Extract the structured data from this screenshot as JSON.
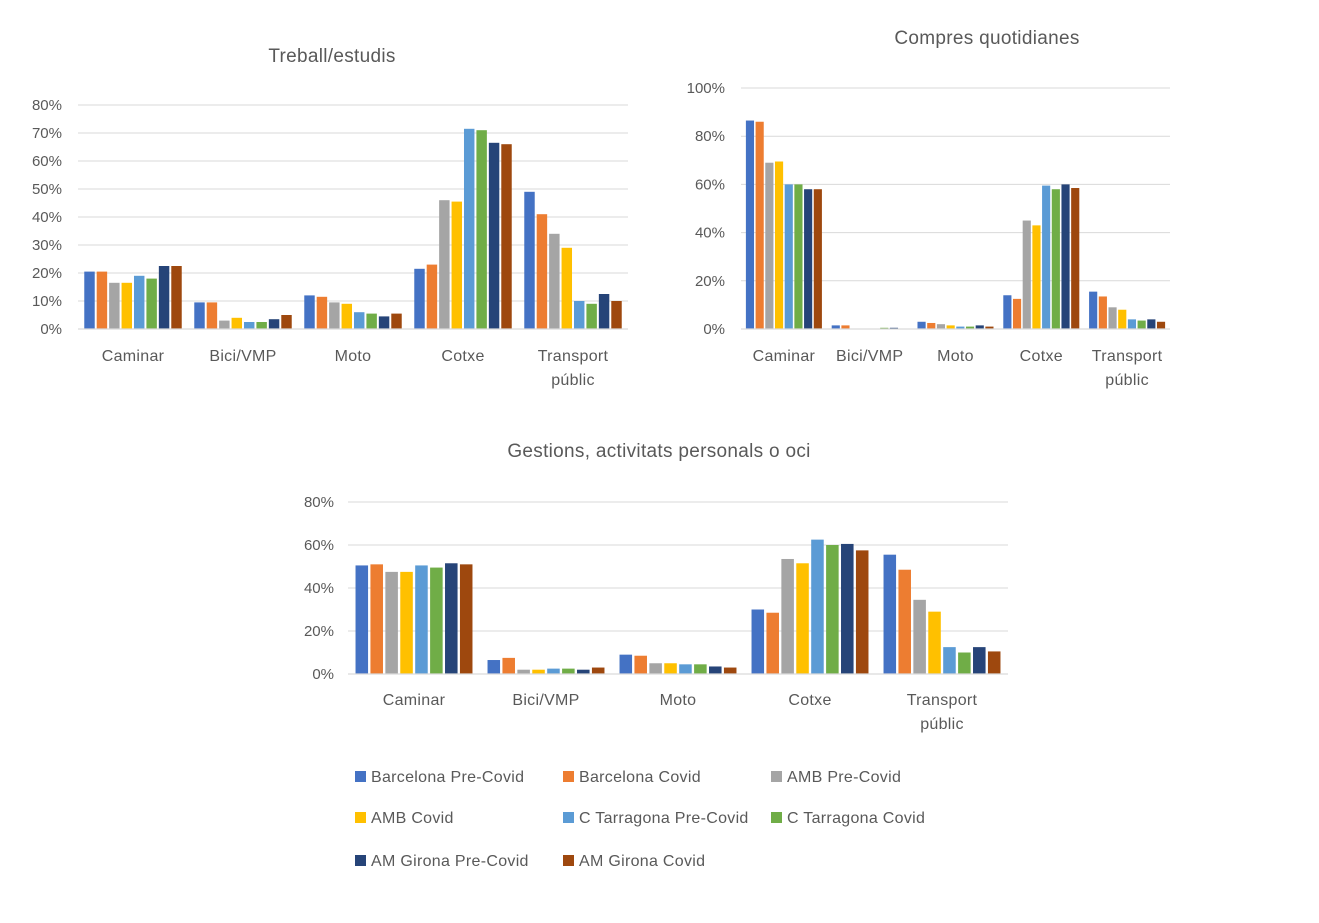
{
  "chart_data": [
    {
      "type": "bar",
      "title": "Treball/estudis",
      "categories": [
        "Caminar",
        "Bici/VMP",
        "Moto",
        "Cotxe",
        "Transport públic"
      ],
      "yticks": [
        "0%",
        "10%",
        "20%",
        "30%",
        "40%",
        "50%",
        "60%",
        "70%",
        "80%"
      ],
      "ylim": [
        0,
        80
      ],
      "grid": true,
      "series": [
        {
          "name": "Barcelona Pre-Covid",
          "values": [
            20.5,
            9.5,
            12,
            21.5,
            49
          ]
        },
        {
          "name": "Barcelona Covid",
          "values": [
            20.5,
            9.5,
            11.5,
            23,
            41
          ]
        },
        {
          "name": "AMB Pre-Covid",
          "values": [
            16.5,
            3,
            9.5,
            46,
            34
          ]
        },
        {
          "name": "AMB Covid",
          "values": [
            16.5,
            4,
            9,
            45.5,
            29
          ]
        },
        {
          "name": "C Tarragona Pre-Covid",
          "values": [
            19,
            2.5,
            6,
            71.5,
            10
          ]
        },
        {
          "name": "C Tarragona Covid",
          "values": [
            18,
            2.5,
            5.5,
            71,
            9
          ]
        },
        {
          "name": "AM Girona Pre-Covid",
          "values": [
            22.5,
            3.5,
            4.5,
            66.5,
            12.5
          ]
        },
        {
          "name": "AM Girona Covid",
          "values": [
            22.5,
            5,
            5.5,
            66,
            10
          ]
        }
      ]
    },
    {
      "type": "bar",
      "title": "Compres quotidianes",
      "categories": [
        "Caminar",
        "Bici/VMP",
        "Moto",
        "Cotxe",
        "Transport públic"
      ],
      "yticks": [
        "0%",
        "20%",
        "40%",
        "60%",
        "80%",
        "100%"
      ],
      "ylim": [
        0,
        100
      ],
      "grid": true,
      "series": [
        {
          "name": "Barcelona Pre-Covid",
          "values": [
            86.5,
            1.5,
            3,
            14,
            15.5
          ]
        },
        {
          "name": "Barcelona Covid",
          "values": [
            86,
            1.5,
            2.5,
            12.5,
            13.5
          ]
        },
        {
          "name": "AMB Pre-Covid",
          "values": [
            69,
            0,
            2,
            45,
            9
          ]
        },
        {
          "name": "AMB Covid",
          "values": [
            69.5,
            0,
            1.5,
            43,
            8
          ]
        },
        {
          "name": "C Tarragona Pre-Covid",
          "values": [
            60,
            0,
            1,
            59.5,
            4
          ]
        },
        {
          "name": "C Tarragona Covid",
          "values": [
            60,
            0.5,
            1,
            58,
            3.5
          ]
        },
        {
          "name": "AM Girona Pre-Covid",
          "values": [
            58,
            0.5,
            1.5,
            60,
            4
          ]
        },
        {
          "name": "AM Girona Covid",
          "values": [
            58,
            0,
            1,
            58.5,
            3
          ]
        }
      ]
    },
    {
      "type": "bar",
      "title": "Gestions, activitats personals o oci",
      "categories": [
        "Caminar",
        "Bici/VMP",
        "Moto",
        "Cotxe",
        "Transport públic"
      ],
      "yticks": [
        "0%",
        "20%",
        "40%",
        "60%",
        "80%"
      ],
      "ylim": [
        0,
        80
      ],
      "grid": true,
      "series": [
        {
          "name": "Barcelona Pre-Covid",
          "values": [
            50.5,
            6.5,
            9,
            30,
            55.5
          ]
        },
        {
          "name": "Barcelona Covid",
          "values": [
            51,
            7.5,
            8.5,
            28.5,
            48.5
          ]
        },
        {
          "name": "AMB Pre-Covid",
          "values": [
            47.5,
            2,
            5,
            53.5,
            34.5
          ]
        },
        {
          "name": "AMB Covid",
          "values": [
            47.5,
            2,
            5,
            51.5,
            29
          ]
        },
        {
          "name": "C Tarragona Pre-Covid",
          "values": [
            50.5,
            2.5,
            4.5,
            62.5,
            12.5
          ]
        },
        {
          "name": "C Tarragona Covid",
          "values": [
            49.5,
            2.5,
            4.5,
            60,
            10
          ]
        },
        {
          "name": "AM Girona Pre-Covid",
          "values": [
            51.5,
            2,
            3.5,
            60.5,
            12.5
          ]
        },
        {
          "name": "AM Girona Covid",
          "values": [
            51,
            3,
            3,
            57.5,
            10.5
          ]
        }
      ]
    }
  ],
  "legend": {
    "items": [
      {
        "label": "Barcelona Pre-Covid",
        "color": "#4472C4"
      },
      {
        "label": "Barcelona Covid",
        "color": "#ED7D31"
      },
      {
        "label": "AMB Pre-Covid",
        "color": "#A5A5A5"
      },
      {
        "label": "AMB Covid",
        "color": "#FFC000"
      },
      {
        "label": "C Tarragona Pre-Covid",
        "color": "#5B9BD5"
      },
      {
        "label": "C Tarragona Covid",
        "color": "#70AD47"
      },
      {
        "label": "AM Girona Pre-Covid",
        "color": "#264478"
      },
      {
        "label": "AM Girona Covid",
        "color": "#9E480E"
      }
    ]
  },
  "colors": {
    "grid": "#D9D9D9",
    "axis": "#D9D9D9",
    "text": "#595959"
  }
}
